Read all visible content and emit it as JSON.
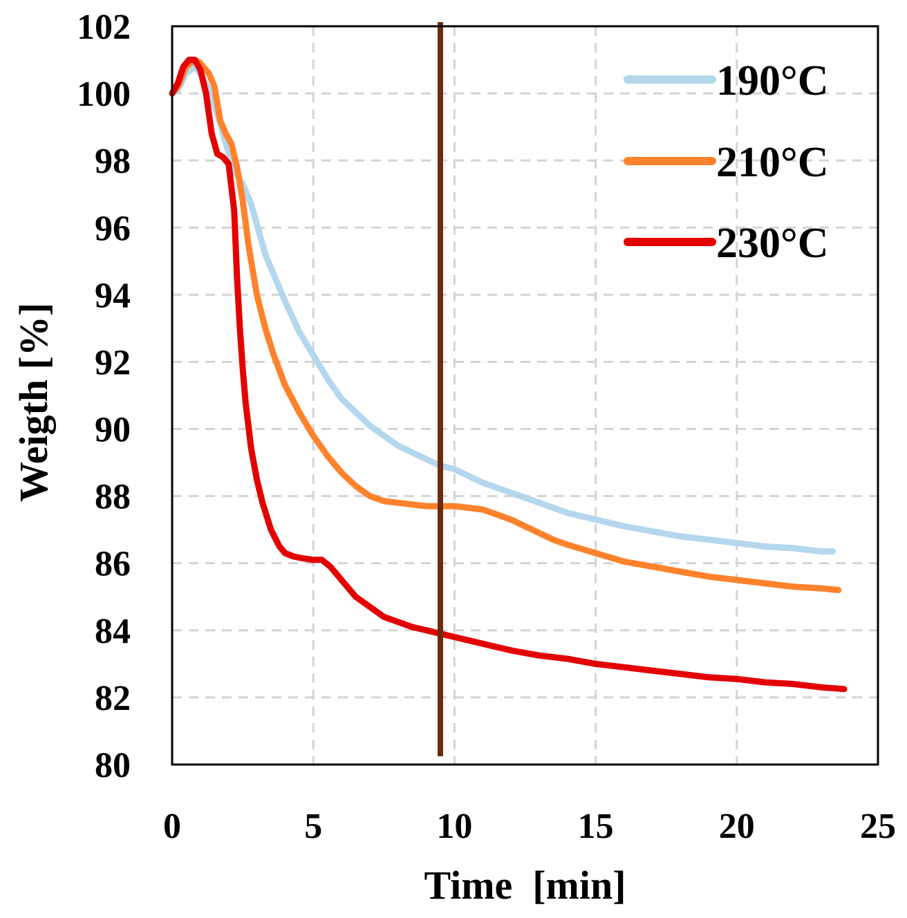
{
  "chart_data": {
    "type": "line",
    "title": "",
    "xlabel": "Time  [min]",
    "ylabel": "Weigth [%]",
    "xlim": [
      0,
      25
    ],
    "ylim": [
      80,
      102
    ],
    "xticks": [
      0,
      5,
      10,
      15,
      20,
      25
    ],
    "yticks": [
      80,
      82,
      84,
      86,
      88,
      90,
      92,
      94,
      96,
      98,
      100,
      102
    ],
    "grid": true,
    "legend_position": "top-right",
    "series": [
      {
        "name": "190°C",
        "color": "#B4D7EE",
        "x": [
          0,
          0.2,
          0.5,
          0.8,
          1.0,
          1.3,
          1.6,
          1.9,
          2.2,
          2.5,
          2.8,
          3.0,
          3.3,
          3.6,
          4.0,
          4.5,
          5.0,
          5.5,
          6.0,
          6.5,
          7.0,
          7.5,
          8.0,
          8.5,
          9.0,
          9.5,
          10.0,
          11.0,
          12.0,
          13.0,
          14.0,
          15.0,
          16.0,
          17.0,
          18.0,
          19.0,
          20.0,
          21.0,
          22.0,
          23.0,
          23.4
        ],
        "y": [
          100.0,
          100.1,
          100.6,
          100.8,
          100.6,
          100.1,
          99.4,
          98.5,
          97.7,
          97.3,
          96.7,
          96.1,
          95.2,
          94.6,
          93.8,
          92.9,
          92.2,
          91.5,
          90.9,
          90.5,
          90.1,
          89.8,
          89.5,
          89.3,
          89.1,
          88.9,
          88.8,
          88.4,
          88.1,
          87.8,
          87.5,
          87.3,
          87.1,
          86.95,
          86.8,
          86.7,
          86.6,
          86.5,
          86.45,
          86.35,
          86.35
        ]
      },
      {
        "name": "210°C",
        "color": "#FF822C",
        "x": [
          0,
          0.2,
          0.5,
          0.8,
          1.0,
          1.3,
          1.5,
          1.7,
          1.9,
          2.1,
          2.3,
          2.5,
          2.7,
          3.0,
          3.3,
          3.6,
          4.0,
          4.5,
          5.0,
          5.5,
          6.0,
          6.5,
          7.0,
          7.5,
          8.0,
          8.5,
          9.0,
          9.5,
          10.0,
          10.5,
          11.0,
          11.5,
          12.0,
          12.5,
          13.0,
          13.5,
          14.0,
          15.0,
          16.0,
          17.0,
          18.0,
          19.0,
          20.0,
          21.0,
          22.0,
          23.0,
          23.6
        ],
        "y": [
          100.0,
          100.2,
          100.8,
          101.0,
          100.9,
          100.6,
          100.2,
          99.2,
          98.8,
          98.5,
          97.8,
          96.8,
          95.5,
          94.0,
          93.0,
          92.2,
          91.3,
          90.5,
          89.8,
          89.2,
          88.7,
          88.3,
          88.0,
          87.85,
          87.8,
          87.75,
          87.7,
          87.7,
          87.7,
          87.65,
          87.6,
          87.45,
          87.3,
          87.1,
          86.9,
          86.7,
          86.55,
          86.3,
          86.05,
          85.9,
          85.75,
          85.6,
          85.5,
          85.4,
          85.3,
          85.25,
          85.2
        ]
      },
      {
        "name": "230°C",
        "color": "#E30000",
        "x": [
          0,
          0.2,
          0.4,
          0.6,
          0.8,
          1.0,
          1.2,
          1.4,
          1.6,
          1.8,
          2.0,
          2.2,
          2.3,
          2.4,
          2.5,
          2.6,
          2.8,
          3.0,
          3.2,
          3.5,
          3.8,
          4.0,
          4.3,
          4.6,
          5.0,
          5.3,
          5.6,
          6.0,
          6.5,
          7.0,
          7.5,
          8.0,
          8.5,
          9.0,
          9.5,
          10.0,
          11.0,
          12.0,
          13.0,
          14.0,
          15.0,
          16.0,
          17.0,
          18.0,
          19.0,
          20.0,
          21.0,
          22.0,
          23.0,
          23.8
        ],
        "y": [
          100.0,
          100.3,
          100.8,
          101.0,
          101.0,
          100.7,
          100.0,
          98.8,
          98.2,
          98.1,
          97.9,
          96.5,
          94.5,
          93.0,
          91.8,
          90.8,
          89.4,
          88.5,
          87.8,
          87.0,
          86.5,
          86.3,
          86.2,
          86.15,
          86.1,
          86.1,
          85.9,
          85.5,
          85.0,
          84.7,
          84.4,
          84.25,
          84.1,
          84.0,
          83.9,
          83.8,
          83.6,
          83.4,
          83.25,
          83.15,
          83.0,
          82.9,
          82.8,
          82.7,
          82.6,
          82.55,
          82.45,
          82.4,
          82.3,
          82.25
        ]
      }
    ],
    "annotations": [
      {
        "type": "vertical-line",
        "x": 9.5,
        "color": "#6E2A0C",
        "note": "marker at ~9.5 min"
      }
    ]
  }
}
